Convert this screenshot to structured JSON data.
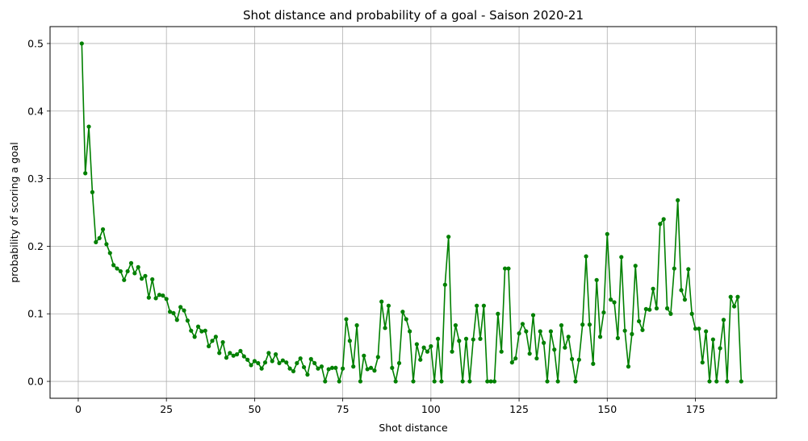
{
  "chart_data": {
    "type": "line",
    "title": "Shot distance and probability of a goal - Saison 2020-21",
    "xlabel": "Shot distance",
    "ylabel": "probability of scoring a goal",
    "xlim": [
      -8,
      198
    ],
    "ylim": [
      -0.025,
      0.525
    ],
    "xticks": [
      0,
      25,
      50,
      75,
      100,
      125,
      150,
      175
    ],
    "yticks": [
      0.0,
      0.1,
      0.2,
      0.3,
      0.4,
      0.5
    ],
    "ytick_labels": [
      "0.0",
      "0.1",
      "0.2",
      "0.3",
      "0.4",
      "0.5"
    ],
    "grid": true,
    "color": "#008000",
    "marker": "dot",
    "series": [
      {
        "x": [
          1,
          2,
          3,
          4,
          5,
          6,
          7,
          8,
          9,
          10,
          11,
          12,
          13,
          14,
          15,
          16,
          17,
          18,
          19,
          20,
          21,
          22,
          23,
          24,
          25,
          26,
          27,
          28,
          29,
          30,
          31,
          32,
          33,
          34,
          35,
          36,
          37,
          38,
          39,
          40,
          41,
          42,
          43,
          44,
          45,
          46,
          47,
          48,
          49,
          50,
          51,
          52,
          53,
          54,
          55,
          56,
          57,
          58,
          59,
          60,
          61,
          62,
          63,
          64,
          65,
          66,
          67,
          68,
          69,
          70,
          71,
          72,
          73,
          74,
          75,
          76,
          77,
          78,
          79,
          80,
          81,
          82,
          83,
          84,
          85,
          86,
          87,
          88,
          89,
          90,
          91,
          92,
          93,
          94,
          95,
          96,
          97,
          98,
          99,
          100,
          101,
          102,
          103,
          104,
          105,
          106,
          107,
          108,
          109,
          110,
          111,
          112,
          113,
          114,
          115,
          116,
          117,
          118,
          119,
          120,
          121,
          122,
          123,
          124,
          125,
          126,
          127,
          128,
          129,
          130,
          131,
          132,
          133,
          134,
          135,
          136,
          137,
          138,
          139,
          140,
          141,
          142,
          143,
          144,
          145,
          146,
          147,
          148,
          149,
          150,
          151,
          152,
          153,
          154,
          155,
          156,
          157,
          158,
          159,
          160,
          161,
          162,
          163,
          164,
          165,
          166,
          167,
          168,
          169,
          170,
          171,
          172,
          173,
          174,
          175,
          176,
          177,
          178,
          179,
          180,
          181,
          182,
          183,
          184,
          185,
          186,
          187,
          188
        ],
        "y": [
          0.5,
          0.308,
          0.377,
          0.28,
          0.206,
          0.212,
          0.225,
          0.203,
          0.19,
          0.172,
          0.167,
          0.163,
          0.15,
          0.163,
          0.175,
          0.16,
          0.169,
          0.152,
          0.156,
          0.124,
          0.151,
          0.123,
          0.128,
          0.127,
          0.122,
          0.103,
          0.101,
          0.091,
          0.11,
          0.105,
          0.09,
          0.075,
          0.066,
          0.081,
          0.074,
          0.075,
          0.052,
          0.06,
          0.066,
          0.042,
          0.058,
          0.035,
          0.042,
          0.038,
          0.04,
          0.045,
          0.037,
          0.032,
          0.024,
          0.03,
          0.027,
          0.019,
          0.028,
          0.042,
          0.03,
          0.04,
          0.027,
          0.031,
          0.028,
          0.019,
          0.015,
          0.027,
          0.034,
          0.021,
          0.01,
          0.033,
          0.027,
          0.019,
          0.022,
          0.0,
          0.018,
          0.02,
          0.02,
          0.0,
          0.019,
          0.092,
          0.06,
          0.022,
          0.083,
          0.0,
          0.038,
          0.018,
          0.02,
          0.016,
          0.036,
          0.118,
          0.079,
          0.112,
          0.02,
          0.0,
          0.027,
          0.103,
          0.092,
          0.074,
          0.0,
          0.055,
          0.032,
          0.05,
          0.044,
          0.052,
          0.0,
          0.063,
          0.0,
          0.143,
          0.214,
          0.044,
          0.083,
          0.06,
          0.0,
          0.063,
          0.0,
          0.062,
          0.112,
          0.063,
          0.112,
          0.0,
          0.0,
          0.0,
          0.1,
          0.044,
          0.167,
          0.167,
          0.028,
          0.034,
          0.071,
          0.085,
          0.074,
          0.041,
          0.098,
          0.034,
          0.074,
          0.057,
          0.0,
          0.074,
          0.047,
          0.0,
          0.083,
          0.05,
          0.066,
          0.033,
          0.0,
          0.032,
          0.084,
          0.185,
          0.084,
          0.026,
          0.15,
          0.066,
          0.102,
          0.218,
          0.121,
          0.117,
          0.064,
          0.184,
          0.075,
          0.022,
          0.07,
          0.171,
          0.089,
          0.076,
          0.107,
          0.106,
          0.137,
          0.108,
          0.233,
          0.24,
          0.108,
          0.1,
          0.167,
          0.268,
          0.135,
          0.121,
          0.166,
          0.1,
          0.078,
          0.078,
          0.028,
          0.074,
          0.0,
          0.062,
          0.0,
          0.049,
          0.091,
          0.0,
          0.125,
          0.111,
          0.125,
          0.0
        ]
      }
    ]
  }
}
